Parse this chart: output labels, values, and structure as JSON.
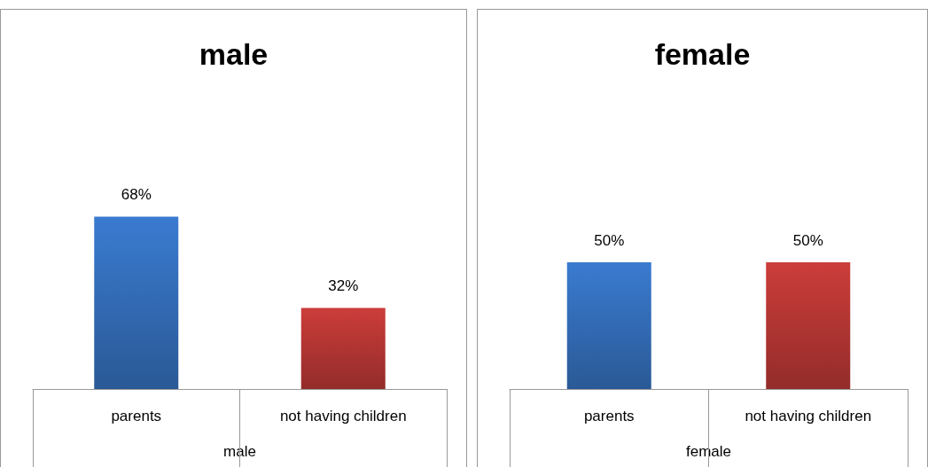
{
  "chart_data": [
    {
      "type": "bar",
      "title": "male",
      "xlabel": "male",
      "categories": [
        "parents",
        "not having children"
      ],
      "values": [
        68,
        32
      ],
      "value_labels": [
        "68%",
        "32%"
      ],
      "colors": [
        "#3a7bd0",
        "#cc3d3a"
      ],
      "tick_labels": "x"
    },
    {
      "type": "bar",
      "title": "female",
      "xlabel": "female",
      "categories": [
        "parents",
        "not having children"
      ],
      "values": [
        50,
        50
      ],
      "value_labels": [
        "50%",
        "50%"
      ],
      "colors": [
        "#3a7bd0",
        "#cc3d3a"
      ],
      "tick_labels": "x"
    }
  ]
}
